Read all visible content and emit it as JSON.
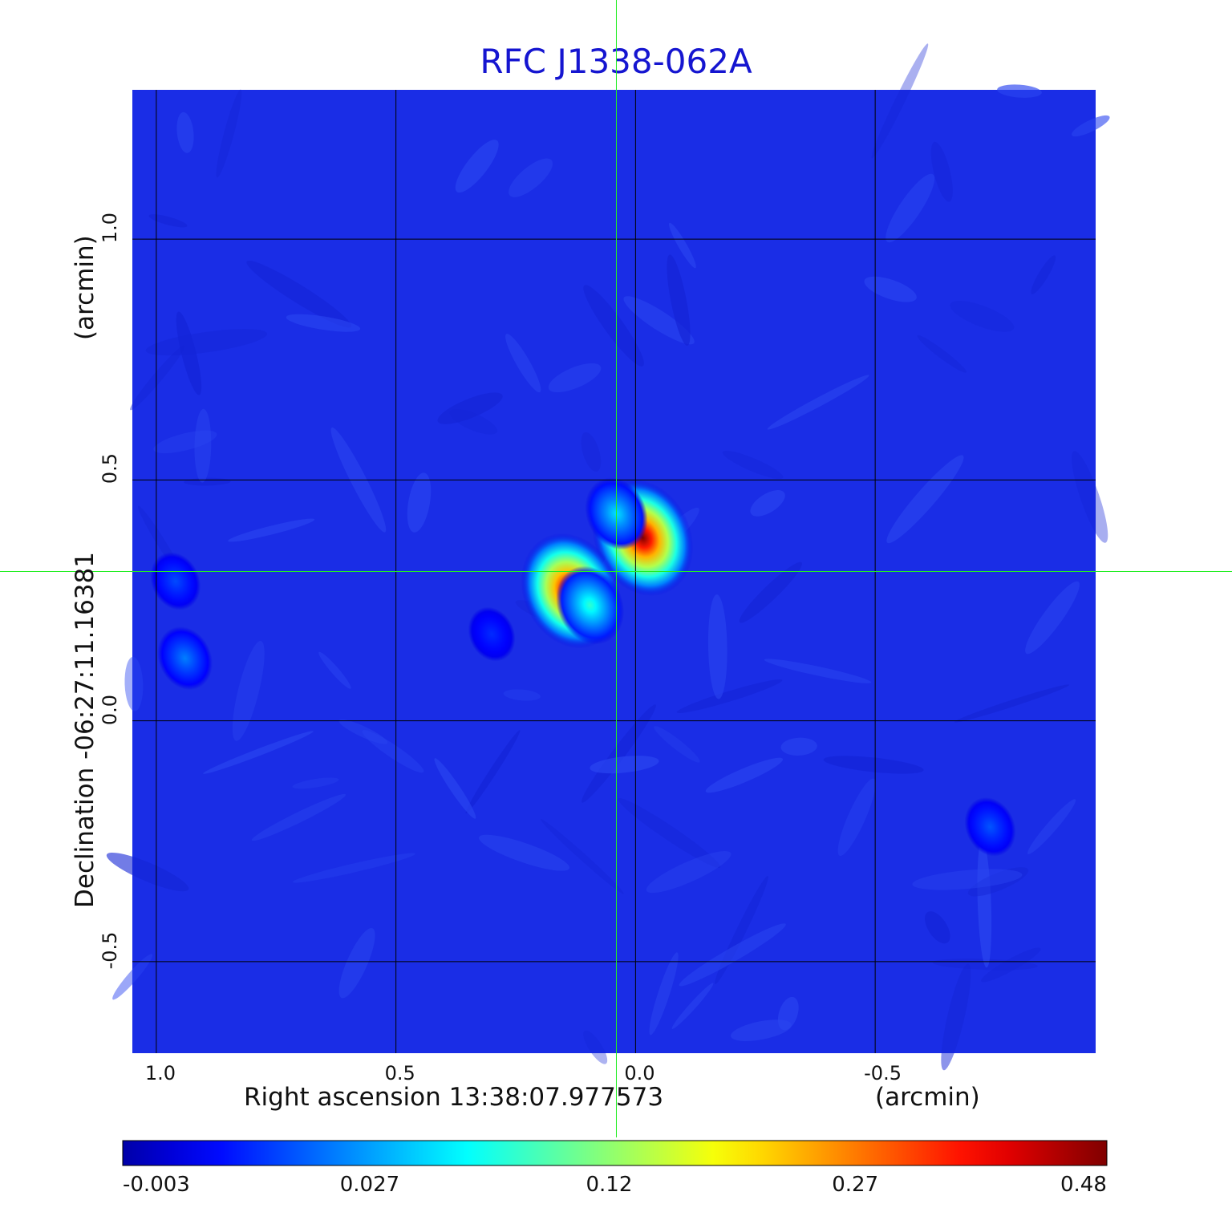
{
  "chart_data": {
    "type": "heatmap",
    "title": "RFC J1338-062A",
    "xlabel": "Right ascension  13:38:07.977573",
    "xunit": "(arcmin)",
    "ylabel": "Declination  -06:27:11.16381",
    "yunit": "(arcmin)",
    "x_ticks": [
      "1.0",
      "0.5",
      "0.0",
      "-0.5"
    ],
    "y_ticks": [
      "1.0",
      "0.5",
      "0.0",
      "-0.5"
    ],
    "xlim": [
      1.05,
      -0.96
    ],
    "ylim": [
      -0.69,
      1.31
    ],
    "grid": true,
    "crosshair": {
      "x": 0.04,
      "y": 0.31
    },
    "colorbar": {
      "ticks": [
        "-0.003",
        "0.027",
        "0.12",
        "0.27",
        "0.48"
      ],
      "colormap": "jet"
    },
    "sources": [
      {
        "x": -0.015,
        "y": 0.38,
        "peak": 0.48
      },
      {
        "x": 0.135,
        "y": 0.27,
        "peak": 0.46
      },
      {
        "x": 0.04,
        "y": 0.43,
        "peak": 0.06
      },
      {
        "x": 0.095,
        "y": 0.24,
        "peak": 0.09
      },
      {
        "x": 0.94,
        "y": 0.13,
        "peak": 0.03
      },
      {
        "x": 0.96,
        "y": 0.29,
        "peak": 0.018
      },
      {
        "x": -0.74,
        "y": -0.22,
        "peak": 0.02
      },
      {
        "x": 0.3,
        "y": 0.18,
        "peak": 0.012
      }
    ],
    "colors": {
      "background": "#1a2de6",
      "title": "#1515d0",
      "crosshair": "#22ee22",
      "grid": "#000000"
    }
  }
}
